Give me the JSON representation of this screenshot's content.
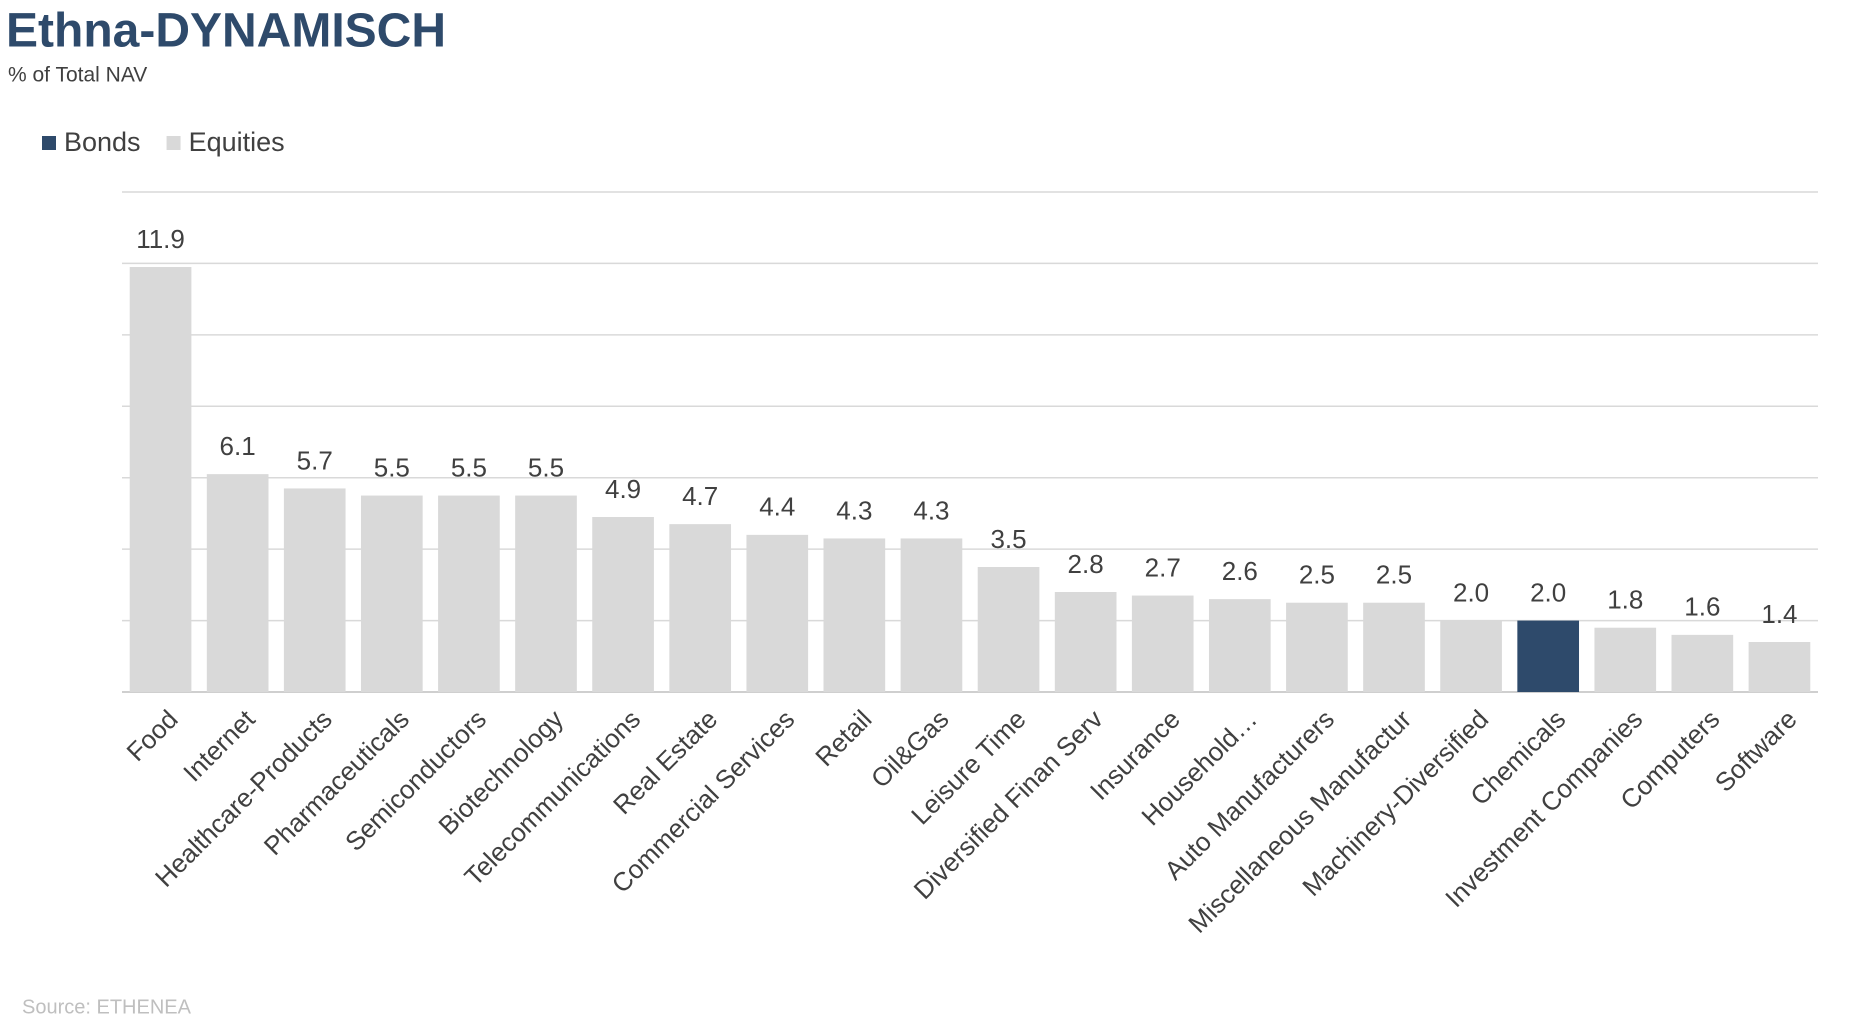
{
  "chart_data": {
    "type": "bar",
    "title": "Ethna-DYNAMISCH",
    "subtitle": "% of Total NAV",
    "source": "Source: ETHENEA",
    "categories": [
      "Food",
      "Internet",
      "Healthcare-Products",
      "Pharmaceuticals",
      "Semiconductors",
      "Biotechnology",
      "Telecommunications",
      "Real Estate",
      "Commercial Services",
      "Retail",
      "Oil&Gas",
      "Leisure Time",
      "Diversified Finan Serv",
      "Insurance",
      "Household…",
      "Auto Manufacturers",
      "Miscellaneous Manufactur",
      "Machinery-Diversified",
      "Chemicals",
      "Investment Companies",
      "Computers",
      "Software"
    ],
    "series": [
      {
        "name": "Bonds",
        "color": "#2e4a6b",
        "values": [
          null,
          null,
          null,
          null,
          null,
          null,
          null,
          null,
          null,
          null,
          null,
          null,
          null,
          null,
          null,
          null,
          null,
          null,
          2.0,
          null,
          null,
          null
        ],
        "value_labels": [
          null,
          null,
          null,
          null,
          null,
          null,
          null,
          null,
          null,
          null,
          null,
          null,
          null,
          null,
          null,
          null,
          null,
          null,
          "2.0",
          null,
          null,
          null
        ]
      },
      {
        "name": "Equities",
        "color": "#d9d9d9",
        "values": [
          11.9,
          6.1,
          5.7,
          5.5,
          5.5,
          5.5,
          4.9,
          4.7,
          4.4,
          4.3,
          4.3,
          3.5,
          2.8,
          2.7,
          2.6,
          2.5,
          2.5,
          2.0,
          null,
          1.8,
          1.6,
          1.4
        ],
        "value_labels": [
          "11.9",
          "6.1",
          "5.7",
          "5.5",
          "5.5",
          "5.5",
          "4.9",
          "4.7",
          "4.4",
          "4.3",
          "4.3",
          "3.5",
          "2.8",
          "2.7",
          "2.6",
          "2.5",
          "2.5",
          "2.0",
          null,
          "1.8",
          "1.6",
          "1.4"
        ]
      }
    ],
    "ylim": [
      0,
      14
    ],
    "yticks": [
      0,
      2,
      4,
      6,
      8,
      10,
      12,
      14
    ],
    "grid": true,
    "legend": "top-left"
  }
}
